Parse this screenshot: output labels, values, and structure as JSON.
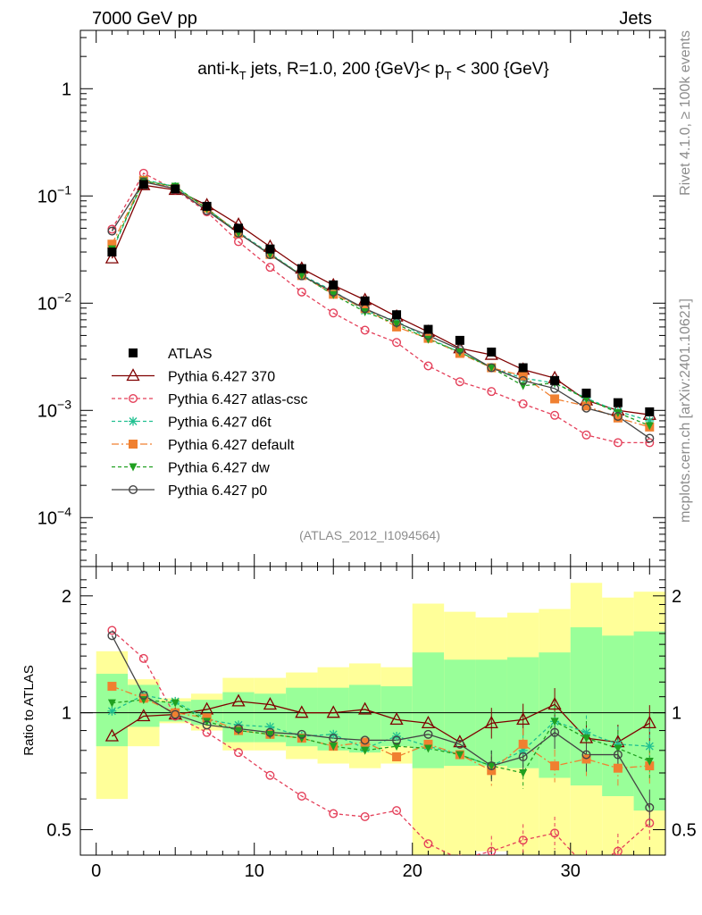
{
  "header": {
    "left": "7000 GeV pp",
    "right": "Jets",
    "side_top": "Rivet 4.1.0, ≥ 100k events",
    "side_bottom": "mcplots.cern.ch [arXiv:2401.10621]"
  },
  "chart_data": {
    "type": "line",
    "title_parts": {
      "pre": "anti-k",
      "sub1": "T",
      "mid": " jets, R=1.0, 200 {GeV}< p",
      "sub2": "T",
      "post": " < 300 {GeV}"
    },
    "watermark": "(ATLAS_2012_I1094564)",
    "ratio_ylabel": "Ratio to ATLAS",
    "x_ticks": [
      "0",
      "10",
      "20",
      "30"
    ],
    "main_y_ticks": {
      "1": "1",
      "0.1": "10",
      "0.01": "10",
      "0.001": "10",
      "0.0001": "10"
    },
    "main_y_exponents": {
      "1": "",
      "0.1": "−1",
      "0.01": "−2",
      "0.001": "−3",
      "0.0001": "−4"
    },
    "ratio_y_ticks": [
      "0.5",
      "1",
      "2"
    ],
    "xlim": [
      -1,
      36
    ],
    "main_ylim": [
      3.5e-05,
      3.5
    ],
    "ratio_ylim": [
      0.43,
      2.38
    ],
    "x": [
      1,
      3,
      5,
      7,
      9,
      11,
      13,
      15,
      17,
      19,
      21,
      23,
      25,
      27,
      29,
      31,
      33,
      35
    ],
    "data": {
      "name": "ATLAS",
      "color": "#000000",
      "values": [
        0.03,
        0.128,
        0.116,
        0.08,
        0.05,
        0.032,
        0.021,
        0.0148,
        0.0105,
        0.0078,
        0.0057,
        0.0045,
        0.0035,
        0.0025,
        0.0019,
        0.00145,
        0.00118,
        0.00097
      ],
      "band_green": [
        [
          0.82,
          1.26
        ],
        [
          0.92,
          1.18
        ],
        [
          0.95,
          1.07
        ],
        [
          0.93,
          1.08
        ],
        [
          0.84,
          1.13
        ],
        [
          0.84,
          1.12
        ],
        [
          0.82,
          1.16
        ],
        [
          0.8,
          1.16
        ],
        [
          0.79,
          1.18
        ],
        [
          0.82,
          1.17
        ],
        [
          0.72,
          1.43
        ],
        [
          0.73,
          1.37
        ],
        [
          0.73,
          1.37
        ],
        [
          0.72,
          1.39
        ],
        [
          0.68,
          1.43
        ],
        [
          0.65,
          1.66
        ],
        [
          0.61,
          1.58
        ],
        [
          0.56,
          1.62
        ]
      ],
      "band_yellow": [
        [
          0.6,
          1.44
        ],
        [
          0.82,
          1.22
        ],
        [
          0.94,
          1.09
        ],
        [
          0.9,
          1.12
        ],
        [
          0.8,
          1.23
        ],
        [
          0.8,
          1.23
        ],
        [
          0.76,
          1.27
        ],
        [
          0.74,
          1.31
        ],
        [
          0.72,
          1.34
        ],
        [
          0.74,
          1.31
        ],
        [
          0.42,
          1.91
        ],
        [
          0.43,
          1.82
        ],
        [
          0.44,
          1.76
        ],
        [
          0.43,
          1.81
        ],
        [
          0.43,
          1.85
        ],
        [
          0.43,
          2.16
        ],
        [
          0.43,
          1.98
        ],
        [
          0.43,
          2.05
        ]
      ]
    },
    "series": [
      {
        "name": "Pythia 6.427 370",
        "color": "#7f0000",
        "dash": "",
        "marker": "triangle-open",
        "values": [
          0.0262,
          0.126,
          0.114,
          0.082,
          0.054,
          0.0336,
          0.021,
          0.0147,
          0.0107,
          0.0075,
          0.0054,
          0.0038,
          0.0033,
          0.0024,
          0.002,
          0.00124,
          0.001,
          0.00091
        ],
        "ratio": [
          0.87,
          0.98,
          0.99,
          1.02,
          1.07,
          1.05,
          1.0,
          1.0,
          1.02,
          0.96,
          0.94,
          0.84,
          0.94,
          0.96,
          1.05,
          0.86,
          0.84,
          0.94
        ]
      },
      {
        "name": "Pythia 6.427 atlas-csc",
        "color": "#e4405a",
        "dash": "4,3",
        "marker": "circle-open",
        "values": [
          0.049,
          0.163,
          0.114,
          0.071,
          0.0375,
          0.0216,
          0.0127,
          0.0081,
          0.0056,
          0.0043,
          0.0026,
          0.00185,
          0.0015,
          0.00115,
          0.0009,
          0.00059,
          0.0005,
          0.0005
        ],
        "ratio": [
          1.63,
          1.38,
          0.98,
          0.89,
          0.79,
          0.69,
          0.61,
          0.55,
          0.54,
          0.56,
          0.46,
          0.42,
          0.44,
          0.47,
          0.49,
          0.4,
          0.44,
          0.52
        ]
      },
      {
        "name": "Pythia 6.427 d6t",
        "color": "#20c090",
        "dash": "4,3",
        "marker": "star",
        "values": [
          0.0305,
          0.142,
          0.122,
          0.076,
          0.046,
          0.029,
          0.0183,
          0.013,
          0.0085,
          0.0068,
          0.0047,
          0.0035,
          0.0025,
          0.002,
          0.0018,
          0.0013,
          0.00098,
          0.0008
        ],
        "ratio": [
          1.01,
          1.11,
          1.07,
          0.96,
          0.93,
          0.92,
          0.87,
          0.88,
          0.81,
          0.87,
          0.82,
          0.78,
          0.73,
          0.8,
          0.95,
          0.89,
          0.83,
          0.82
        ]
      },
      {
        "name": "Pythia 6.427 default",
        "color": "#f08030",
        "dash": "8,3,2,3",
        "marker": "square",
        "values": [
          0.0355,
          0.14,
          0.117,
          0.077,
          0.045,
          0.0285,
          0.0181,
          0.0121,
          0.0089,
          0.006,
          0.0047,
          0.0034,
          0.0025,
          0.0021,
          0.00128,
          0.0011,
          0.00085,
          0.0007
        ],
        "ratio": [
          1.17,
          1.09,
          1.0,
          0.97,
          0.9,
          0.88,
          0.86,
          0.82,
          0.84,
          0.77,
          0.83,
          0.78,
          0.71,
          0.83,
          0.73,
          0.76,
          0.72,
          0.73
        ]
      },
      {
        "name": "Pythia 6.427 dw",
        "color": "#20a020",
        "dash": "4,3",
        "marker": "triangle-down",
        "values": [
          0.032,
          0.138,
          0.123,
          0.076,
          0.045,
          0.0285,
          0.0182,
          0.012,
          0.0083,
          0.0064,
          0.0046,
          0.0035,
          0.0025,
          0.0017,
          0.0018,
          0.00128,
          0.00095,
          0.00072
        ],
        "ratio": [
          1.06,
          1.08,
          1.06,
          0.95,
          0.9,
          0.88,
          0.86,
          0.82,
          0.8,
          0.82,
          0.81,
          0.78,
          0.73,
          0.7,
          0.95,
          0.86,
          0.81,
          0.75
        ]
      },
      {
        "name": "Pythia 6.427 p0",
        "color": "#444444",
        "dash": "",
        "marker": "circle-open",
        "values": [
          0.047,
          0.135,
          0.117,
          0.073,
          0.045,
          0.0283,
          0.018,
          0.0127,
          0.0089,
          0.0066,
          0.005,
          0.0037,
          0.0025,
          0.0019,
          0.0016,
          0.00105,
          0.00088,
          0.00055
        ],
        "ratio": [
          1.58,
          1.11,
          0.99,
          0.93,
          0.91,
          0.89,
          0.88,
          0.86,
          0.85,
          0.85,
          0.88,
          0.83,
          0.73,
          0.77,
          0.89,
          0.78,
          0.78,
          0.57
        ]
      }
    ]
  }
}
